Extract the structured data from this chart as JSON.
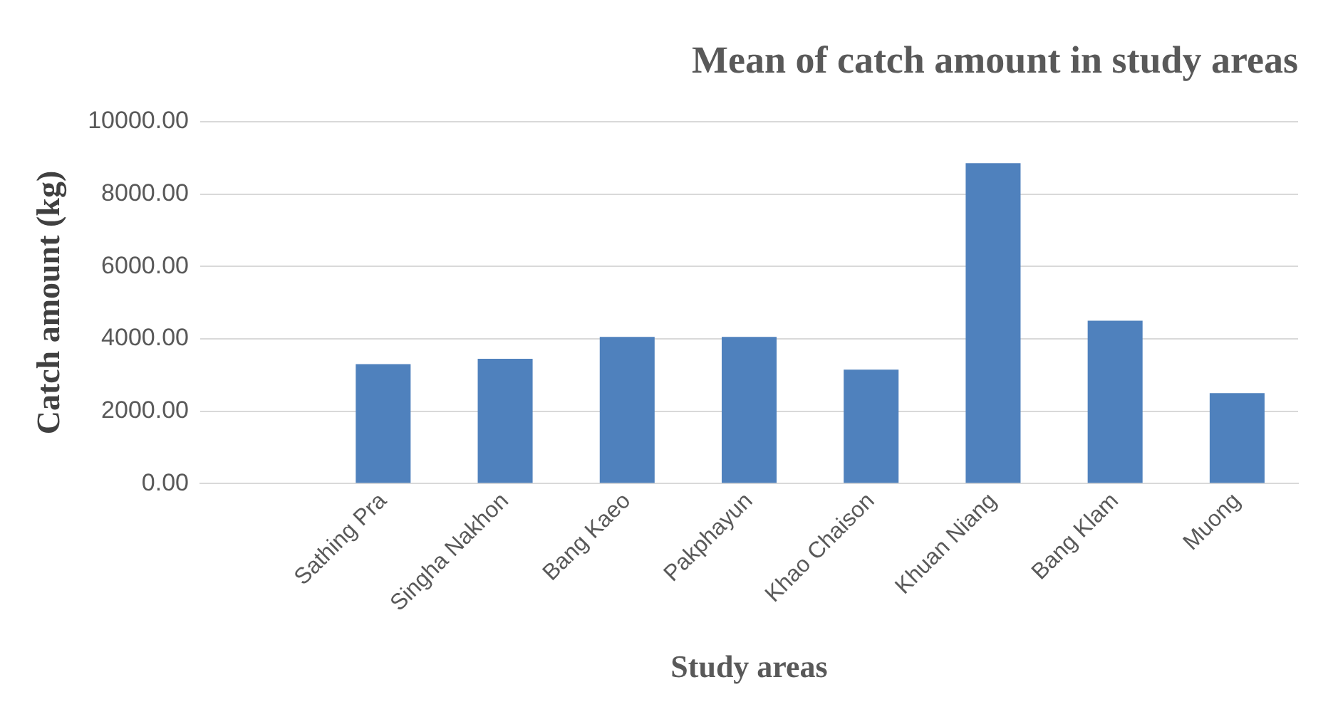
{
  "chart_data": {
    "type": "bar",
    "title": "Mean of catch amount in study areas",
    "xlabel": "Study areas",
    "ylabel": "Catch amount (kg)",
    "categories": [
      null,
      "Sathing Pra",
      "Singha Nakhon",
      "Bang Kaeo",
      "Pakphayun",
      "Khao Chaison",
      "Khuan Niang",
      "Bang Klam",
      "Muong"
    ],
    "values": [
      null,
      3300,
      3450,
      4050,
      4050,
      3150,
      8850,
      4500,
      2500
    ],
    "color": "#4f81bd",
    "ylim": [
      0,
      10000
    ],
    "yticks": [
      {
        "value": 0,
        "label": "0.00"
      },
      {
        "value": 2000,
        "label": "2000.00"
      },
      {
        "value": 4000,
        "label": "4000.00"
      },
      {
        "value": 6000,
        "label": "6000.00"
      },
      {
        "value": 8000,
        "label": "8000.00"
      },
      {
        "value": 10000,
        "label": "10000.00"
      }
    ],
    "grid": "y",
    "legend": false
  }
}
